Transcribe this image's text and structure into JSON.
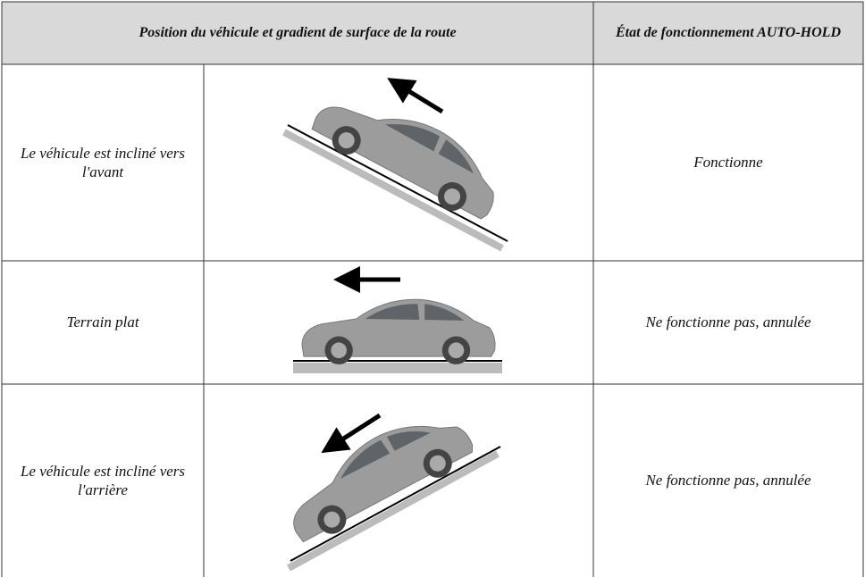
{
  "table": {
    "header": [
      "Position du véhicule et gradient de surface de la route",
      "État de fonctionnement AUTO-HOLD"
    ],
    "rows": [
      [
        "Le véhicule est incliné vers l'avant",
        "Fonctionne"
      ],
      [
        "Terrain plat",
        "Ne fonctionne pas, annulée"
      ],
      [
        "Le véhicule est incliné vers l'arrière",
        "Ne fonctionne pas, annulée"
      ]
    ]
  }
}
